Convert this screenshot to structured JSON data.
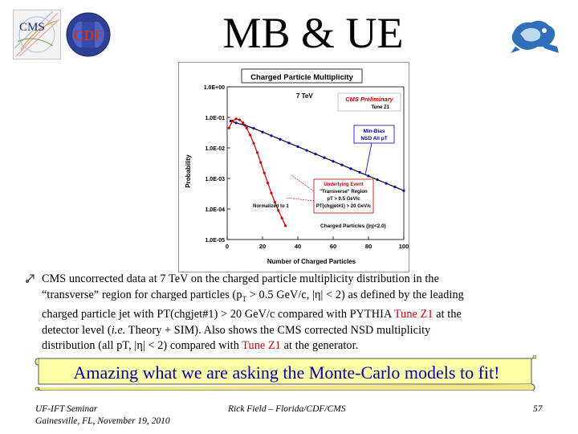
{
  "slide": {
    "title": "MB & UE",
    "cms_logo_text": "CMS",
    "cdf_logo_text": "CDF",
    "page_number": "57"
  },
  "chart_data": {
    "type": "scatter",
    "title": "Charged Particle Multiplicity",
    "xlabel": "Number of Charged Particles",
    "ylabel": "Probability",
    "x_ticks": [
      "0",
      "20",
      "40",
      "60",
      "80",
      "100"
    ],
    "y_ticks": [
      "1.0E+00",
      "1.0E-01",
      "1.0E-02",
      "1.0E-03",
      "1.0E-04",
      "1.0E-05"
    ],
    "xlim": [
      0,
      100
    ],
    "ylim_log10": [
      -5,
      0
    ],
    "y_scale": "log",
    "annotations": {
      "energy": "7 TeV",
      "prelim": "CMS Preliminary",
      "tune": "Tune Z1",
      "minbias_line1": "Min-Bias",
      "minbias_line2": "NSD All pT",
      "ue_line1": "Underlying Event",
      "ue_line2": "\"Transverse\" Region",
      "ue_line3": "pT > 0.5 GeV/c",
      "ue_line4": "PT(chgjet#1) > 20 GeV/c",
      "normalized": "Normalized to 1",
      "charged": "Charged Particles (|η|<2.0)"
    },
    "series": [
      {
        "name": "Min-Bias NSD All pT",
        "color": "#0000cc",
        "x": [
          2,
          5,
          10,
          15,
          20,
          25,
          30,
          35,
          40,
          45,
          50,
          55,
          60,
          65,
          70,
          75,
          80,
          85,
          90,
          95,
          100
        ],
        "y_log10": [
          -1.12,
          -1.18,
          -1.26,
          -1.36,
          -1.48,
          -1.6,
          -1.72,
          -1.84,
          -1.96,
          -2.08,
          -2.2,
          -2.32,
          -2.44,
          -2.56,
          -2.68,
          -2.8,
          -2.92,
          -3.04,
          -3.16,
          -3.28,
          -3.4
        ]
      },
      {
        "name": "Underlying Event \"Transverse\" Region",
        "color": "#cc0000",
        "x": [
          1,
          3,
          5,
          7,
          9,
          11,
          13,
          15,
          17,
          19,
          21,
          23,
          25,
          27,
          29,
          31,
          33
        ],
        "y_log10": [
          -1.35,
          -1.12,
          -1.05,
          -1.08,
          -1.18,
          -1.35,
          -1.58,
          -1.85,
          -2.15,
          -2.48,
          -2.82,
          -3.15,
          -3.48,
          -3.78,
          -4.05,
          -4.3,
          -4.55
        ]
      }
    ]
  },
  "bullet": {
    "line1": "CMS uncorrected data at 7 TeV on the charged particle multiplicity distribution in the",
    "line2a": "“transverse” region for charged particles (p",
    "line2sub": "T",
    "line2b": " > 0.5 GeV/c, |η| < 2) as defined by the leading",
    "line3a": "charged particle jet with PT(chgjet#1) > 20 GeV/c compared with PYTHIA ",
    "line3red": "Tune Z1",
    "line3b": " at the",
    "line4a": "detector level (",
    "line4ie": "i.e.",
    "line4b": " Theory + SIM). Also shows the CMS corrected NSD multiplicity",
    "line5a": "distribution (all pT, |η| < 2) compared with ",
    "line5red": "Tune Z1",
    "line5b": " at the generator."
  },
  "banner": {
    "text": "Amazing what we are asking the Monte-Carlo models to fit!"
  },
  "footer": {
    "left_line1": "UF-IFT Seminar",
    "left_line2": "Gainesville, FL,  November 19, 2010",
    "center": "Rick Field – Florida/CDF/CMS",
    "right": "57"
  },
  "colors": {
    "banner_fill": "#ffffa8",
    "banner_text": "#0000aa",
    "red_text": "#cc0000"
  }
}
